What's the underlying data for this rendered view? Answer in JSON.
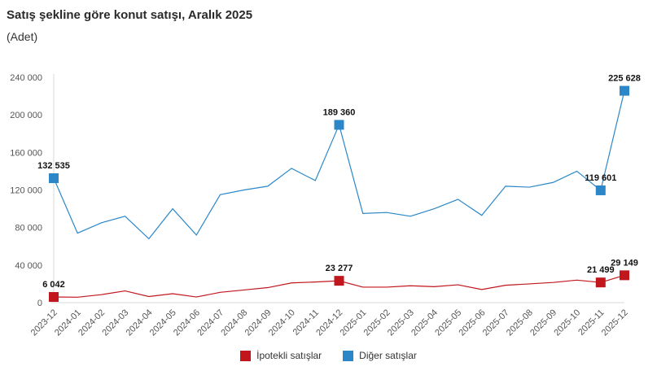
{
  "chart_data": {
    "type": "line",
    "title": "Satış şekline göre konut satışı, Aralık 2025",
    "subtitle": "(Adet)",
    "x": [
      "2023-12",
      "2024-01",
      "2024-02",
      "2024-03",
      "2024-04",
      "2024-05",
      "2024-06",
      "2024-07",
      "2024-08",
      "2024-09",
      "2024-10",
      "2024-11",
      "2024-12",
      "2025-01",
      "2025-02",
      "2025-03",
      "2025-04",
      "2025-05",
      "2025-06",
      "2025-07",
      "2025-08",
      "2025-09",
      "2025-10",
      "2025-11",
      "2025-12"
    ],
    "ylim": [
      0,
      240000
    ],
    "yticks": [
      0,
      40000,
      80000,
      120000,
      160000,
      200000,
      240000
    ],
    "ytick_labels": [
      "0",
      "40 000",
      "80 000",
      "120 000",
      "160 000",
      "200 000",
      "240 000"
    ],
    "grid": false,
    "legend": "bottom",
    "series": [
      {
        "name": "İpotekli satışlar",
        "color": "#c0161c",
        "values": [
          6042,
          5800,
          8500,
          12500,
          6500,
          9500,
          6000,
          11000,
          13500,
          16000,
          21000,
          22000,
          23277,
          16500,
          16500,
          18000,
          17000,
          19000,
          14000,
          18500,
          20000,
          21500,
          24000,
          21499,
          29149
        ],
        "labels": {
          "0": "6 042",
          "12": "23 277",
          "23": "21 499",
          "24": "29 149"
        }
      },
      {
        "name": "Diğer satışlar",
        "color": "#2b87c8",
        "values": [
          132535,
          74000,
          85000,
          92000,
          68000,
          100000,
          72000,
          115000,
          120000,
          124000,
          143000,
          130000,
          189360,
          95000,
          96000,
          92000,
          100000,
          110000,
          93000,
          124000,
          123000,
          128000,
          140000,
          119601,
          225628
        ],
        "labels": {
          "0": "132 535",
          "12": "189 360",
          "23": "119 601",
          "24": "225 628"
        }
      }
    ]
  }
}
